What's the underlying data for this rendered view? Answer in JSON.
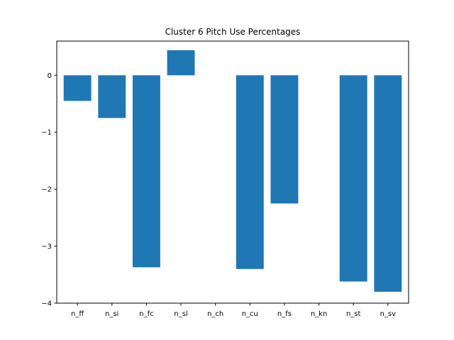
{
  "chart_data": {
    "type": "bar",
    "title": "Cluster 6 Pitch Use Percentages",
    "xlabel": "",
    "ylabel": "",
    "categories": [
      "n_ff",
      "n_si",
      "n_fc",
      "n_sl",
      "n_ch",
      "n_cu",
      "n_fs",
      "n_kn",
      "n_st",
      "n_sv"
    ],
    "values": [
      -0.45,
      -0.75,
      -3.37,
      0.44,
      0.0,
      -3.4,
      -2.25,
      0.0,
      -3.62,
      -3.8
    ],
    "ylim": [
      -4.0,
      0.6
    ],
    "yticks": [
      0,
      -1,
      -2,
      -3,
      -4
    ],
    "grid": false,
    "legend": "none",
    "bar_color": "#1f77b4"
  }
}
